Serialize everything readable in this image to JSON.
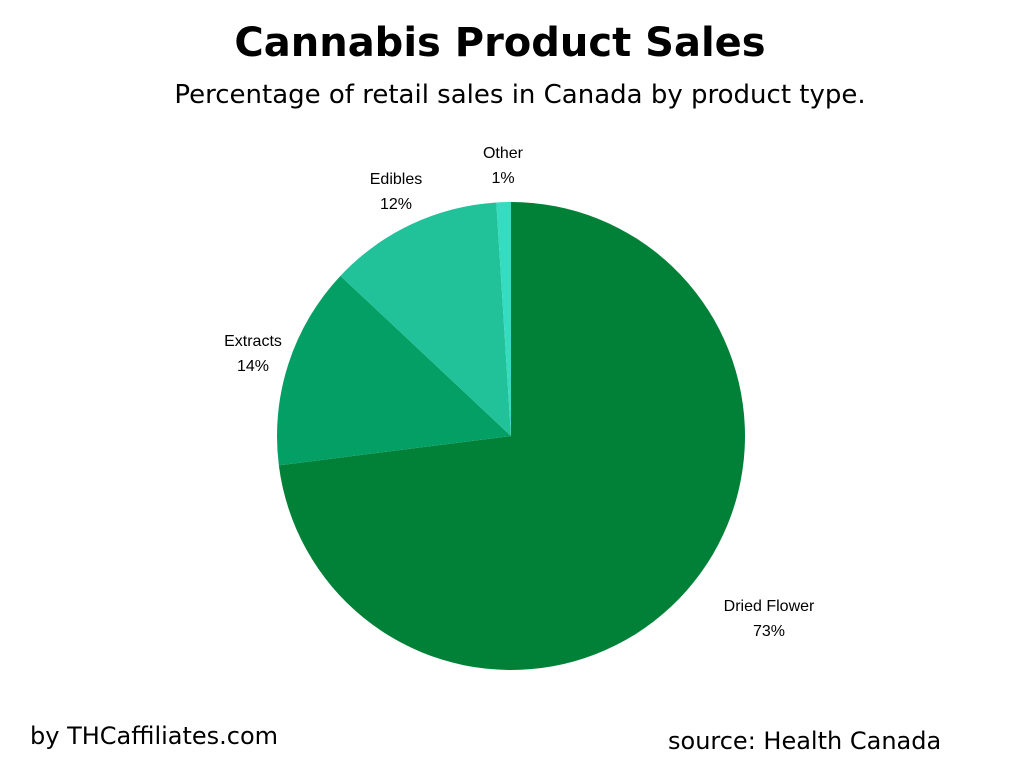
{
  "title": "Cannabis Product Sales",
  "subtitle": "Percentage of retail sales in Canada by product type.",
  "credit": "by THCaffiliates.com",
  "source": "source: Health Canada",
  "chart_data": {
    "type": "pie",
    "title": "Cannabis Product Sales",
    "subtitle": "Percentage of retail sales in Canada by product type.",
    "slices": [
      {
        "label": "Dried Flower",
        "value": 73,
        "value_label": "73%",
        "color": "#018137"
      },
      {
        "label": "Extracts",
        "value": 14,
        "value_label": "14%",
        "color": "#039f65"
      },
      {
        "label": "Edibles",
        "value": 12,
        "value_label": "12%",
        "color": "#21c299"
      },
      {
        "label": "Other",
        "value": 1,
        "value_label": "1%",
        "color": "#36dcc0"
      }
    ],
    "start": "12 o'clock",
    "direction": "clockwise",
    "legend": "none",
    "data_labels": "outside"
  }
}
